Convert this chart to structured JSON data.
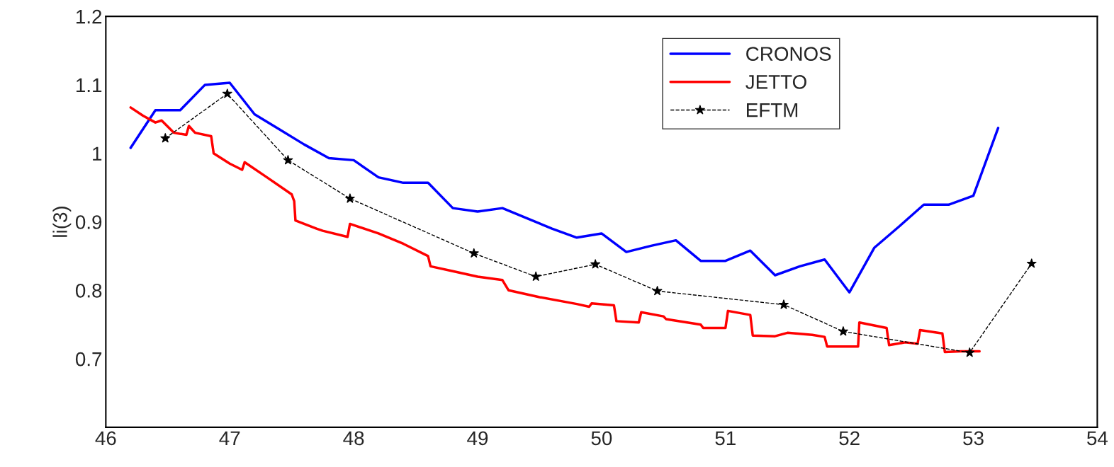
{
  "chart_data": {
    "type": "line",
    "ylabel": "li(3)",
    "xlim": [
      46,
      54
    ],
    "ylim": [
      0.6,
      1.2
    ],
    "xticks": [
      46,
      47,
      48,
      49,
      50,
      51,
      52,
      53,
      54
    ],
    "yticks": [
      0.7,
      0.8,
      0.9,
      1,
      1.1,
      1.2
    ],
    "grid": false,
    "legend": "top right",
    "series": [
      {
        "name": "CRONOS",
        "color": "#0000ff",
        "line_style": "solid",
        "marker": "none",
        "x": [
          46.2,
          46.4,
          46.6,
          46.8,
          47.0,
          47.2,
          47.4,
          47.6,
          47.8,
          48.0,
          48.2,
          48.4,
          48.6,
          48.8,
          49.0,
          49.2,
          49.4,
          49.6,
          49.8,
          50.0,
          50.2,
          50.4,
          50.6,
          50.8,
          51.0,
          51.2,
          51.4,
          51.6,
          51.8,
          52.0,
          52.2,
          52.4,
          52.6,
          52.8,
          53.0,
          53.2
        ],
        "values": [
          1.008,
          1.063,
          1.063,
          1.1,
          1.103,
          1.057,
          1.035,
          1.013,
          0.993,
          0.99,
          0.965,
          0.957,
          0.957,
          0.92,
          0.915,
          0.92,
          0.905,
          0.89,
          0.877,
          0.883,
          0.856,
          0.865,
          0.873,
          0.843,
          0.843,
          0.858,
          0.822,
          0.835,
          0.845,
          0.797,
          0.862,
          0.893,
          0.925,
          0.925,
          0.938,
          1.037
        ]
      },
      {
        "name": "JETTO",
        "color": "#ff0000",
        "line_style": "solid",
        "marker": "none",
        "x": [
          46.2,
          46.3,
          46.4,
          46.45,
          46.55,
          46.65,
          46.67,
          46.72,
          46.85,
          46.87,
          47.0,
          47.1,
          47.12,
          47.3,
          47.5,
          47.52,
          47.53,
          47.7,
          47.75,
          47.95,
          47.97,
          48.2,
          48.4,
          48.6,
          48.62,
          48.8,
          49.0,
          49.2,
          49.25,
          49.5,
          49.8,
          49.9,
          49.92,
          50.1,
          50.12,
          50.3,
          50.32,
          50.5,
          50.52,
          50.8,
          50.82,
          51.0,
          51.02,
          51.2,
          51.22,
          51.4,
          51.5,
          51.7,
          51.8,
          51.82,
          52.07,
          52.08,
          52.3,
          52.32,
          52.45,
          52.55,
          52.57,
          52.75,
          52.77,
          52.9,
          53.05
        ],
        "values": [
          1.067,
          1.055,
          1.045,
          1.048,
          1.03,
          1.027,
          1.04,
          1.03,
          1.025,
          1.0,
          0.985,
          0.976,
          0.987,
          0.965,
          0.94,
          0.93,
          0.902,
          0.89,
          0.887,
          0.878,
          0.897,
          0.883,
          0.868,
          0.85,
          0.835,
          0.828,
          0.82,
          0.815,
          0.8,
          0.79,
          0.78,
          0.776,
          0.781,
          0.778,
          0.755,
          0.753,
          0.768,
          0.762,
          0.758,
          0.75,
          0.745,
          0.745,
          0.77,
          0.764,
          0.734,
          0.733,
          0.738,
          0.735,
          0.732,
          0.718,
          0.718,
          0.753,
          0.745,
          0.72,
          0.724,
          0.722,
          0.742,
          0.737,
          0.71,
          0.711,
          0.711
        ]
      },
      {
        "name": "EFTM",
        "color": "#000000",
        "line_style": "dashed",
        "marker": "star",
        "x": [
          46.48,
          46.98,
          47.47,
          47.97,
          48.97,
          49.47,
          49.95,
          50.45,
          51.47,
          51.95,
          52.97,
          53.47
        ],
        "values": [
          1.022,
          1.087,
          0.99,
          0.934,
          0.854,
          0.82,
          0.838,
          0.799,
          0.779,
          0.74,
          0.709,
          0.839
        ]
      }
    ]
  }
}
